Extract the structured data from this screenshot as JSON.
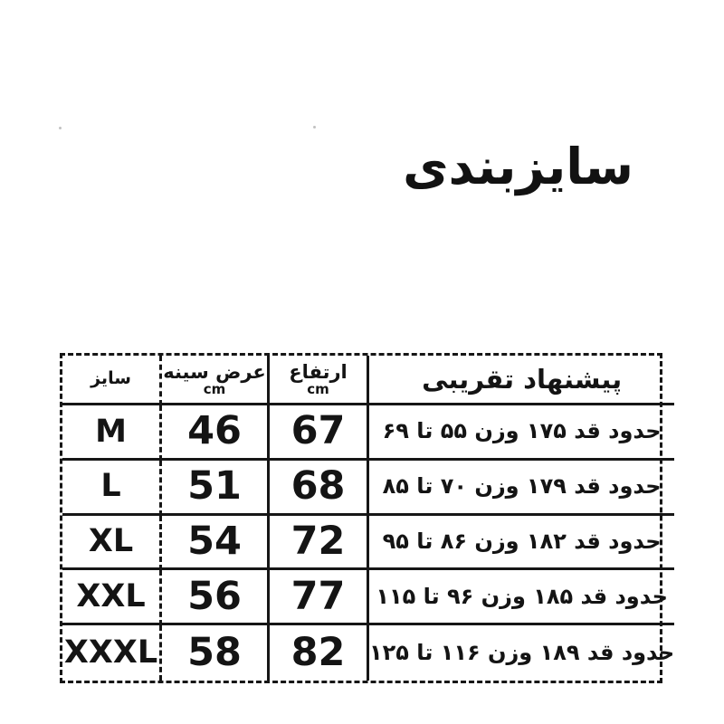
{
  "title": "سایزبندی",
  "table": {
    "header": {
      "size_label": "سایز",
      "chest_label": "عرض سینه",
      "chest_unit": "cm",
      "height_label": "ارتفاع",
      "height_unit": "cm",
      "suggestion_label": "پیشنهاد تقریبی"
    },
    "rows": [
      {
        "size": "M",
        "chest_cm": "46",
        "height_cm": "67",
        "suggestion": "حدود قد ۱۷۵ وزن ۵۵ تا ۶۹"
      },
      {
        "size": "L",
        "chest_cm": "51",
        "height_cm": "68",
        "suggestion": "حدود قد ۱۷۹ وزن ۷۰ تا ۸۵"
      },
      {
        "size": "XL",
        "chest_cm": "54",
        "height_cm": "72",
        "suggestion": "حدود قد ۱۸۲ وزن ۸۶ تا ۹۵"
      },
      {
        "size": "XXL",
        "chest_cm": "56",
        "height_cm": "77",
        "suggestion": "حدود قد ۱۸۵ وزن ۹۶ تا ۱۱۵"
      },
      {
        "size": "XXXL",
        "chest_cm": "58",
        "height_cm": "82",
        "suggestion": "حدود قد ۱۸۹ وزن ۱۱۶ تا ۱۲۵"
      }
    ]
  },
  "colors": {
    "ink": "#141414",
    "border": "#161616",
    "background": "#ffffff"
  }
}
